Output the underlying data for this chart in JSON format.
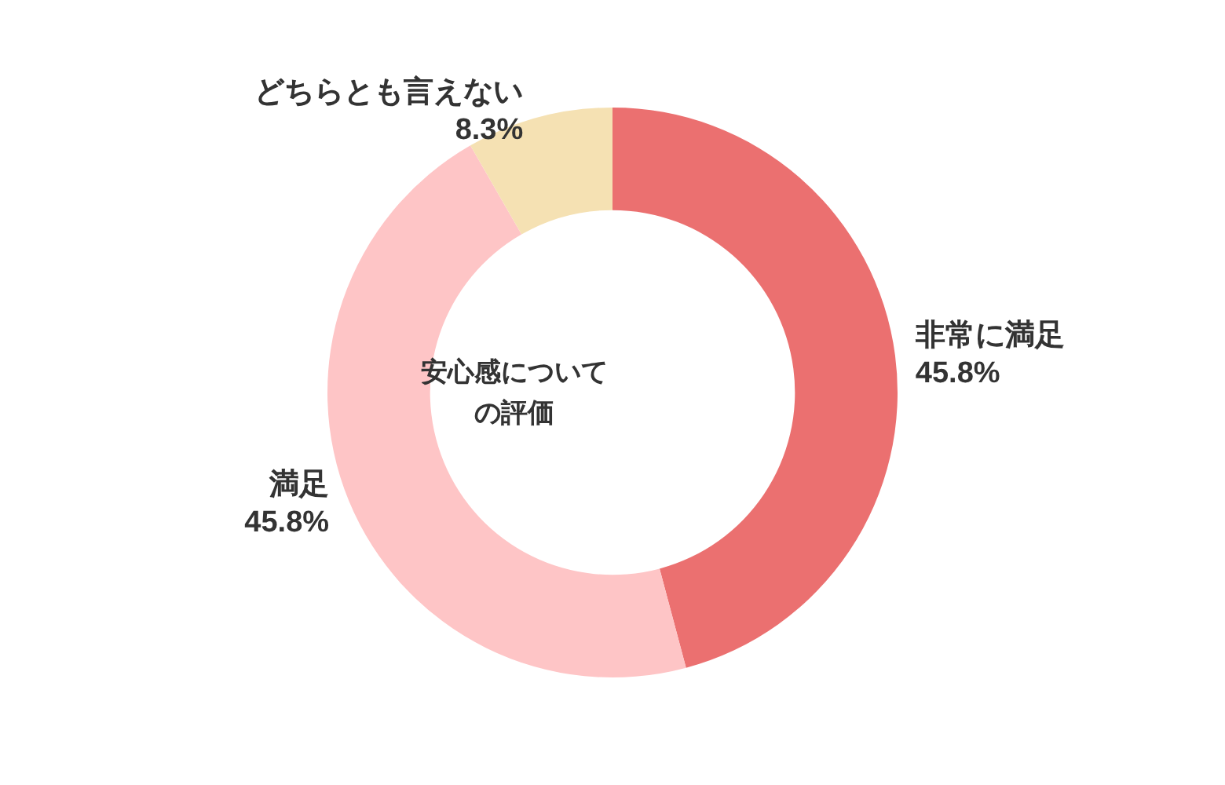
{
  "chart_data": {
    "type": "donut",
    "title": "安心感についての評価",
    "categories": [
      "非常に満足",
      "満足",
      "どちらとも言えない"
    ],
    "values": [
      45.8,
      45.8,
      8.3
    ],
    "colors": [
      "#eb7070",
      "#fec5c6",
      "#f5e1b3"
    ],
    "value_labels": [
      "45.8%",
      "45.8%",
      "8.3%"
    ],
    "legend": false
  }
}
